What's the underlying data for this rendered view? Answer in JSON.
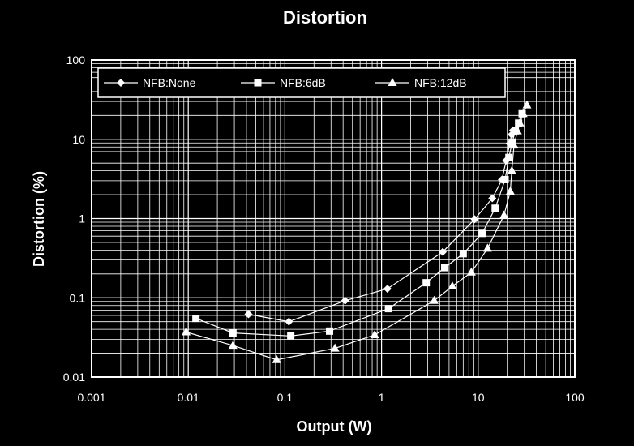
{
  "chart_data": {
    "type": "line",
    "title": "Distortion",
    "xlabel": "Output (W)",
    "ylabel": "Distortion (%)",
    "x_scale": "log",
    "y_scale": "log",
    "xlim": [
      0.001,
      100
    ],
    "ylim": [
      0.01,
      100
    ],
    "x_tick_labels": [
      "0.001",
      "0.01",
      "0.1",
      "1",
      "10",
      "100"
    ],
    "y_tick_labels": [
      "0.01",
      "0.1",
      "1",
      "10",
      "100"
    ],
    "grid": true,
    "legend_position": "top",
    "colors": {
      "background": "#000000",
      "foreground": "#ffffff"
    },
    "series": [
      {
        "name": "NFB:None",
        "marker": "diamond",
        "points": [
          [
            0.042,
            0.062
          ],
          [
            0.11,
            0.05
          ],
          [
            0.42,
            0.092
          ],
          [
            1.15,
            0.13
          ],
          [
            4.3,
            0.38
          ],
          [
            9.2,
            0.98
          ],
          [
            14.0,
            1.8
          ],
          [
            17.6,
            3.1
          ],
          [
            19.5,
            5.4
          ],
          [
            21.2,
            8.8
          ],
          [
            22.2,
            11.5
          ],
          [
            23.0,
            13.0
          ]
        ]
      },
      {
        "name": "NFB:6dB",
        "marker": "square",
        "points": [
          [
            0.012,
            0.055
          ],
          [
            0.029,
            0.036
          ],
          [
            0.115,
            0.033
          ],
          [
            0.29,
            0.038
          ],
          [
            1.18,
            0.073
          ],
          [
            2.9,
            0.155
          ],
          [
            4.5,
            0.24
          ],
          [
            7.0,
            0.36
          ],
          [
            11.0,
            0.65
          ],
          [
            15.0,
            1.35
          ],
          [
            19.0,
            3.1
          ],
          [
            20.8,
            5.9
          ],
          [
            22.5,
            9.2
          ],
          [
            24.2,
            12.8
          ],
          [
            26.2,
            16.0
          ],
          [
            28.5,
            21.0
          ]
        ]
      },
      {
        "name": "NFB:12dB",
        "marker": "triangle",
        "points": [
          [
            0.0095,
            0.037
          ],
          [
            0.029,
            0.025
          ],
          [
            0.082,
            0.0165
          ],
          [
            0.33,
            0.023
          ],
          [
            0.85,
            0.034
          ],
          [
            3.5,
            0.092
          ],
          [
            5.4,
            0.14
          ],
          [
            8.5,
            0.21
          ],
          [
            12.5,
            0.42
          ],
          [
            18.5,
            1.1
          ],
          [
            21.5,
            2.2
          ],
          [
            22.3,
            4.0
          ],
          [
            23.5,
            8.4
          ],
          [
            25.5,
            12.7
          ],
          [
            27.0,
            16.0
          ],
          [
            29.2,
            21.0
          ],
          [
            32.0,
            27.0
          ]
        ]
      }
    ]
  }
}
